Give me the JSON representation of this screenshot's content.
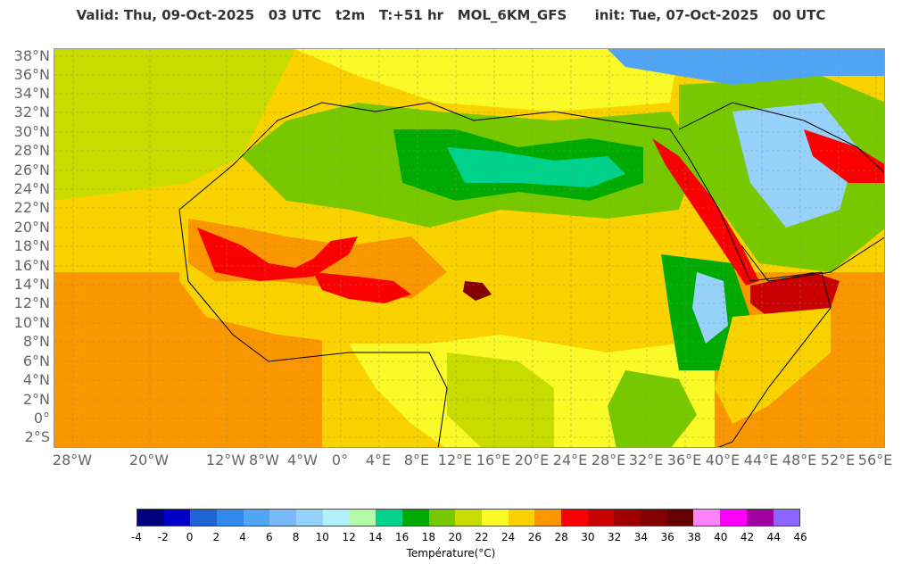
{
  "header": {
    "title": "Valid: Thu, 09-Oct-2025   03 UTC   t2m   T:+51 hr   MOL_6KM_GFS      init: Tue, 07-Oct-2025   00 UTC"
  },
  "map": {
    "projection_note": "",
    "lat_labels": [
      "38°N",
      "36°N",
      "34°N",
      "32°N",
      "30°N",
      "28°N",
      "26°N",
      "24°N",
      "22°N",
      "20°N",
      "18°N",
      "16°N",
      "14°N",
      "12°N",
      "10°N",
      "8°N",
      "6°N",
      "4°N",
      "2°N",
      "0°",
      "2°S"
    ],
    "lon_labels": [
      "28°W",
      "20°W",
      "12°W",
      "8°W",
      "4°W",
      "0°",
      "4°E",
      "8°E",
      "12°E",
      "16°E",
      "20°E",
      "24°E",
      "28°E",
      "32°E",
      "36°E",
      "40°E",
      "44°E",
      "48°E",
      "52°E",
      "56°E"
    ]
  },
  "colorbar": {
    "colors": [
      "#00007f",
      "#0000c8",
      "#1e64d2",
      "#3287eb",
      "#50a5f5",
      "#78b9fa",
      "#96d2fa",
      "#b4f0fa",
      "#b4faaa",
      "#00d28c",
      "#00aa00",
      "#78c800",
      "#c8dc00",
      "#fafa28",
      "#fad200",
      "#fa9600",
      "#fa0000",
      "#c80000",
      "#a00000",
      "#820000",
      "#640000",
      "#ff82ff",
      "#ff00ff",
      "#a000a0",
      "#8c64ff"
    ],
    "ticks": [
      "-4",
      "-2",
      "0",
      "2",
      "4",
      "6",
      "8",
      "10",
      "12",
      "14",
      "16",
      "18",
      "20",
      "22",
      "24",
      "26",
      "28",
      "30",
      "32",
      "34",
      "36",
      "38",
      "40",
      "42",
      "44",
      "46"
    ],
    "label": "Température(°C)"
  }
}
